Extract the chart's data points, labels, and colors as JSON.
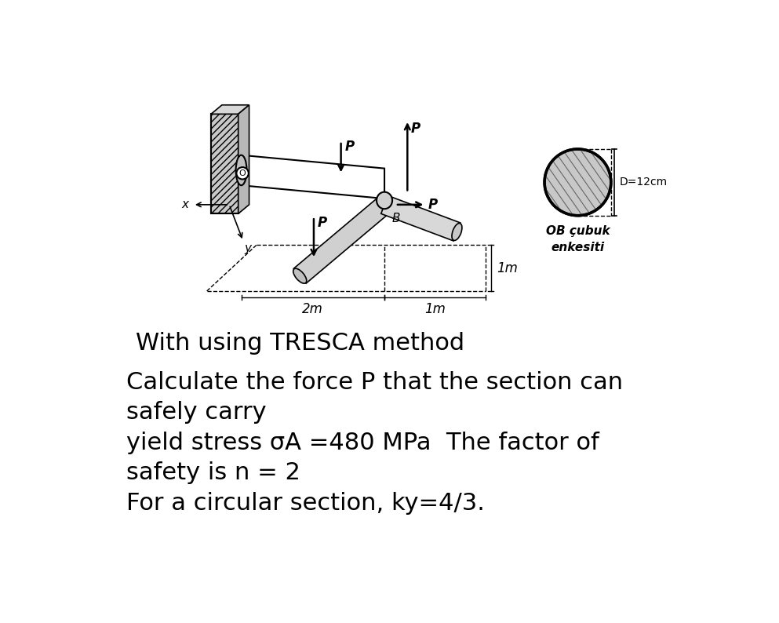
{
  "bg_color": "#ffffff",
  "title_text": "With using TRESCA method",
  "body_text_line1": "Calculate the force P that the section can",
  "body_text_line2": "safely carry",
  "body_text_line3": "yield stress σA =480 MPa  The factor of",
  "body_text_line4": "safety is n = 2",
  "body_text_line5": "For a circular section, ky=4/3.",
  "circle_label": "OB çubuk\nenkesiti",
  "diameter_label": "D=12cm",
  "label_2m": "2m",
  "label_1m_bottom": "1m",
  "label_1m_right": "1m",
  "label_B": "B",
  "label_P": "P",
  "label_x": "x",
  "label_y": "y",
  "wall_color": "#c8c8c8",
  "bar_color_light": "#e8e8e8",
  "bar_color_dark": "#b0b0b0",
  "circle_fill": "#c8c8c8",
  "text_color": "#000000",
  "title_fontsize": 22,
  "body_fontsize": 22
}
